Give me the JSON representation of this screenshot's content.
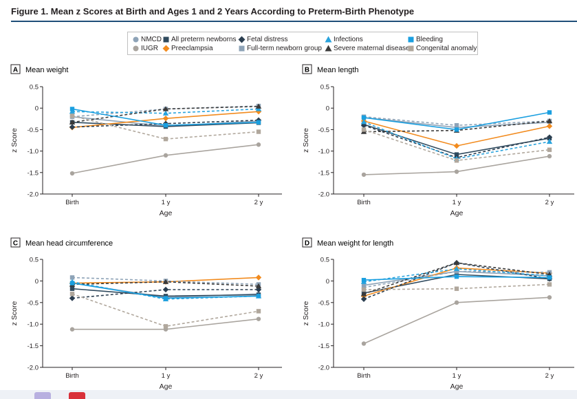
{
  "figure": {
    "title": "Figure 1. Mean z Scores at Birth and Ages 1 and 2 Years According to Preterm-Birth Phenotype"
  },
  "legend": [
    {
      "label": "NMCD",
      "color": "#8ea3b7",
      "marker": "circle"
    },
    {
      "label": "IUGR",
      "color": "#a9a49e",
      "marker": "circle"
    },
    {
      "label": "All preterm newborns",
      "color": "#2f4a5e",
      "marker": "square"
    },
    {
      "label": "Preeclampsia",
      "color": "#f28b1e",
      "marker": "diamond"
    },
    {
      "label": "Fetal distress",
      "color": "#2b3e50",
      "marker": "diamond"
    },
    {
      "label": "Full-term newborn group",
      "color": "#8ea3b7",
      "marker": "square"
    },
    {
      "label": "Infections",
      "color": "#29a3dd",
      "marker": "triangle"
    },
    {
      "label": "Severe maternal disease",
      "color": "#3a3a3a",
      "marker": "triangle"
    },
    {
      "label": "Bleeding",
      "color": "#1a9fe0",
      "marker": "square"
    },
    {
      "label": "Congenital anomaly",
      "color": "#b0a79c",
      "marker": "square"
    }
  ],
  "chart_data": [
    {
      "type": "line",
      "letter": "A",
      "title": "Mean weight",
      "xlabel": "Age",
      "ylabel": "z Score",
      "categories": [
        "Birth",
        "1 y",
        "2 y"
      ],
      "ylim": [
        -2.0,
        0.5
      ],
      "yticks": [
        "0.5",
        "0",
        "-0.5",
        "-1.0",
        "-1.5",
        "-2.0"
      ],
      "series": [
        {
          "name": "NMCD",
          "values": [
            -0.2,
            -0.42,
            -0.3
          ]
        },
        {
          "name": "IUGR",
          "values": [
            -1.52,
            -1.1,
            -0.85
          ]
        },
        {
          "name": "All preterm newborns",
          "values": [
            -0.33,
            -0.43,
            -0.34
          ]
        },
        {
          "name": "Preeclampsia",
          "values": [
            -0.45,
            -0.24,
            -0.08
          ]
        },
        {
          "name": "Fetal distress",
          "values": [
            -0.44,
            -0.36,
            -0.28
          ]
        },
        {
          "name": "Full-term newborn group",
          "values": [
            -0.2,
            -0.02,
            0.05
          ]
        },
        {
          "name": "Infections",
          "values": [
            -0.08,
            -0.12,
            -0.02
          ]
        },
        {
          "name": "Severe maternal disease",
          "values": [
            -0.33,
            -0.02,
            0.04
          ]
        },
        {
          "name": "Bleeding",
          "values": [
            -0.02,
            -0.4,
            -0.33
          ]
        },
        {
          "name": "Congenital anomaly",
          "values": [
            -0.18,
            -0.72,
            -0.55
          ]
        }
      ]
    },
    {
      "type": "line",
      "letter": "B",
      "title": "Mean length",
      "xlabel": "Age",
      "ylabel": "z Score",
      "categories": [
        "Birth",
        "1 y",
        "2 y"
      ],
      "ylim": [
        -2.0,
        0.5
      ],
      "yticks": [
        "0.5",
        "0",
        "-0.5",
        "-1.0",
        "-1.5",
        "-2.0"
      ],
      "series": [
        {
          "name": "NMCD",
          "values": [
            -0.22,
            -0.45,
            -0.33
          ]
        },
        {
          "name": "IUGR",
          "values": [
            -1.55,
            -1.48,
            -1.12
          ]
        },
        {
          "name": "All preterm newborns",
          "values": [
            -0.38,
            -1.08,
            -0.7
          ]
        },
        {
          "name": "Preeclampsia",
          "values": [
            -0.3,
            -0.88,
            -0.42
          ]
        },
        {
          "name": "Fetal distress",
          "values": [
            -0.4,
            -1.15,
            -0.68
          ]
        },
        {
          "name": "Full-term newborn group",
          "values": [
            -0.2,
            -0.4,
            -0.3
          ]
        },
        {
          "name": "Infections",
          "values": [
            -0.32,
            -1.18,
            -0.78
          ]
        },
        {
          "name": "Severe maternal disease",
          "values": [
            -0.55,
            -0.52,
            -0.3
          ]
        },
        {
          "name": "Bleeding",
          "values": [
            -0.22,
            -0.5,
            -0.1
          ]
        },
        {
          "name": "Congenital anomaly",
          "values": [
            -0.5,
            -1.22,
            -0.97
          ]
        }
      ]
    },
    {
      "type": "line",
      "letter": "C",
      "title": "Mean head circumference",
      "xlabel": "Age",
      "ylabel": "z Score",
      "categories": [
        "Birth",
        "1 y",
        "2 y"
      ],
      "ylim": [
        -2.0,
        0.5
      ],
      "yticks": [
        "0.5",
        "0",
        "-0.5",
        "-1.0",
        "-1.5",
        "-2.0"
      ],
      "series": [
        {
          "name": "NMCD",
          "values": [
            -0.05,
            -0.38,
            -0.3
          ]
        },
        {
          "name": "IUGR",
          "values": [
            -1.12,
            -1.12,
            -0.88
          ]
        },
        {
          "name": "All preterm newborns",
          "values": [
            -0.18,
            -0.35,
            -0.32
          ]
        },
        {
          "name": "Preeclampsia",
          "values": [
            -0.05,
            -0.02,
            0.08
          ]
        },
        {
          "name": "Fetal distress",
          "values": [
            -0.4,
            -0.2,
            -0.2
          ]
        },
        {
          "name": "Full-term newborn group",
          "values": [
            0.08,
            0.0,
            -0.08
          ]
        },
        {
          "name": "Infections",
          "values": [
            -0.02,
            -0.42,
            -0.35
          ]
        },
        {
          "name": "Severe maternal disease",
          "values": [
            -0.08,
            -0.02,
            -0.12
          ]
        },
        {
          "name": "Bleeding",
          "values": [
            -0.05,
            -0.4,
            -0.35
          ]
        },
        {
          "name": "Congenital anomaly",
          "values": [
            -0.3,
            -1.05,
            -0.7
          ]
        }
      ]
    },
    {
      "type": "line",
      "letter": "D",
      "title": "Mean weight for length",
      "xlabel": "Age",
      "ylabel": "z Score",
      "categories": [
        "Birth",
        "1 y",
        "2 y"
      ],
      "ylim": [
        -2.0,
        0.5
      ],
      "yticks": [
        "0.5",
        "0",
        "-0.5",
        "-1.0",
        "-1.5",
        "-2.0"
      ],
      "series": [
        {
          "name": "NMCD",
          "values": [
            -0.1,
            0.22,
            0.12
          ]
        },
        {
          "name": "IUGR",
          "values": [
            -1.45,
            -0.5,
            -0.38
          ]
        },
        {
          "name": "All preterm newborns",
          "values": [
            -0.28,
            0.15,
            0.05
          ]
        },
        {
          "name": "Preeclampsia",
          "values": [
            -0.35,
            0.3,
            0.18
          ]
        },
        {
          "name": "Fetal distress",
          "values": [
            -0.42,
            0.42,
            0.05
          ]
        },
        {
          "name": "Full-term newborn group",
          "values": [
            -0.15,
            0.22,
            0.2
          ]
        },
        {
          "name": "Infections",
          "values": [
            -0.02,
            0.28,
            0.12
          ]
        },
        {
          "name": "Severe maternal disease",
          "values": [
            -0.3,
            0.42,
            0.15
          ]
        },
        {
          "name": "Bleeding",
          "values": [
            0.02,
            0.1,
            0.08
          ]
        },
        {
          "name": "Congenital anomaly",
          "values": [
            -0.2,
            -0.18,
            -0.08
          ]
        }
      ]
    }
  ]
}
